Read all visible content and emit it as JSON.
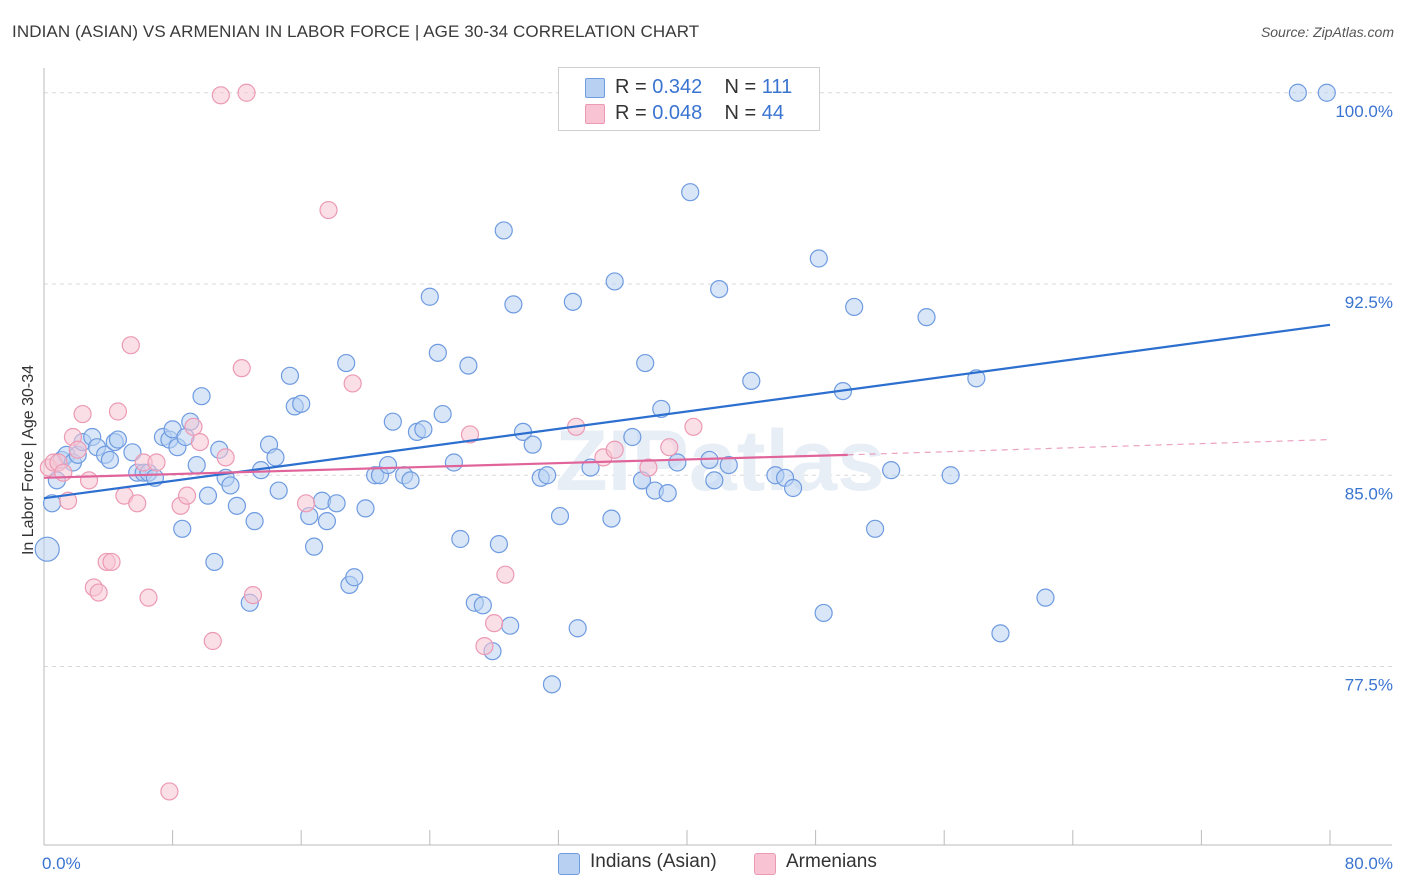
{
  "title": "INDIAN (ASIAN) VS ARMENIAN IN LABOR FORCE | AGE 30-34 CORRELATION CHART",
  "source": "Source: ZipAtlas.com",
  "watermark": "ZIPatlas",
  "legend": {
    "series1": {
      "r_label": "R = ",
      "r_value": "0.342",
      "n_label": "N = ",
      "n_value": "111"
    },
    "series2": {
      "r_label": "R = ",
      "r_value": "0.048",
      "n_label": "N = ",
      "n_value": "44"
    }
  },
  "bottom_legend": {
    "series1": "Indians (Asian)",
    "series2": "Armenians"
  },
  "colors": {
    "blue_fill": "#b8d1f3",
    "blue_stroke": "#6f9be0",
    "blue_line": "#2c6fcf",
    "pink_fill": "#f8c4d4",
    "pink_stroke": "#ec9ab4",
    "pink_line": "#e0649a",
    "axis_label": "#3a74d1",
    "grid": "#d8d8d8"
  },
  "chart_data": {
    "type": "scatter",
    "xlabel": "",
    "ylabel": "In Labor Force | Age 30-34",
    "xlim": [
      0,
      80
    ],
    "ylim": [
      70.5,
      100.5
    ],
    "x_tick_labels": {
      "min": "0.0%",
      "max": "80.0%"
    },
    "y_ticks": [
      {
        "value": 100,
        "label": "100.0%"
      },
      {
        "value": 92.5,
        "label": "92.5%"
      },
      {
        "value": 85,
        "label": "85.0%"
      },
      {
        "value": 77.5,
        "label": "77.5%"
      }
    ],
    "grid": true,
    "legend_position": "top-center",
    "series": [
      {
        "name": "Indians (Asian)",
        "color": "#6f9be0",
        "trend": {
          "x": [
            0,
            80
          ],
          "y": [
            84.1,
            90.9
          ],
          "dashed_after": null
        },
        "points": [
          [
            0.2,
            82.1
          ],
          [
            0.5,
            83.9
          ],
          [
            0.8,
            84.8
          ],
          [
            1.1,
            85.6
          ],
          [
            1.4,
            85.8
          ],
          [
            1.8,
            85.5
          ],
          [
            2.1,
            85.8
          ],
          [
            2.4,
            86.3
          ],
          [
            3.0,
            86.5
          ],
          [
            3.3,
            86.1
          ],
          [
            3.8,
            85.8
          ],
          [
            4.1,
            85.6
          ],
          [
            4.4,
            86.3
          ],
          [
            4.6,
            86.4
          ],
          [
            5.5,
            85.9
          ],
          [
            5.8,
            85.1
          ],
          [
            6.2,
            85.1
          ],
          [
            6.5,
            85.1
          ],
          [
            6.9,
            84.9
          ],
          [
            7.4,
            86.5
          ],
          [
            7.8,
            86.4
          ],
          [
            8.0,
            86.8
          ],
          [
            8.3,
            86.1
          ],
          [
            8.6,
            82.9
          ],
          [
            8.8,
            86.5
          ],
          [
            9.1,
            87.1
          ],
          [
            9.5,
            85.4
          ],
          [
            9.8,
            88.1
          ],
          [
            10.2,
            84.2
          ],
          [
            10.6,
            81.6
          ],
          [
            10.9,
            86.0
          ],
          [
            11.3,
            84.9
          ],
          [
            11.6,
            84.6
          ],
          [
            12.0,
            83.8
          ],
          [
            12.8,
            80.0
          ],
          [
            13.1,
            83.2
          ],
          [
            13.5,
            85.2
          ],
          [
            14.0,
            86.2
          ],
          [
            14.4,
            85.7
          ],
          [
            14.6,
            84.4
          ],
          [
            15.3,
            88.9
          ],
          [
            15.6,
            87.7
          ],
          [
            16.0,
            87.8
          ],
          [
            16.5,
            83.4
          ],
          [
            16.8,
            82.2
          ],
          [
            17.3,
            84.0
          ],
          [
            17.6,
            83.2
          ],
          [
            18.2,
            83.9
          ],
          [
            18.8,
            89.4
          ],
          [
            19.0,
            80.7
          ],
          [
            19.3,
            81.0
          ],
          [
            20.0,
            83.7
          ],
          [
            20.6,
            85.0
          ],
          [
            20.9,
            85.0
          ],
          [
            21.4,
            85.4
          ],
          [
            21.7,
            87.1
          ],
          [
            22.4,
            85.0
          ],
          [
            22.8,
            84.8
          ],
          [
            23.2,
            86.7
          ],
          [
            23.6,
            86.8
          ],
          [
            24.0,
            92.0
          ],
          [
            24.5,
            89.8
          ],
          [
            24.8,
            87.4
          ],
          [
            25.5,
            85.5
          ],
          [
            25.9,
            82.5
          ],
          [
            26.4,
            89.3
          ],
          [
            26.8,
            80.0
          ],
          [
            27.3,
            79.9
          ],
          [
            27.9,
            78.1
          ],
          [
            28.3,
            82.3
          ],
          [
            28.6,
            94.6
          ],
          [
            29.0,
            79.1
          ],
          [
            29.2,
            91.7
          ],
          [
            29.8,
            86.7
          ],
          [
            30.4,
            86.2
          ],
          [
            30.9,
            84.9
          ],
          [
            31.3,
            85.0
          ],
          [
            31.6,
            76.8
          ],
          [
            32.1,
            83.4
          ],
          [
            32.9,
            91.8
          ],
          [
            33.2,
            79.0
          ],
          [
            34.0,
            85.3
          ],
          [
            35.3,
            83.3
          ],
          [
            35.5,
            92.6
          ],
          [
            36.6,
            86.5
          ],
          [
            37.2,
            84.8
          ],
          [
            37.4,
            89.4
          ],
          [
            38.0,
            84.4
          ],
          [
            38.4,
            87.6
          ],
          [
            38.8,
            84.3
          ],
          [
            39.4,
            85.5
          ],
          [
            40.2,
            96.1
          ],
          [
            41.4,
            85.6
          ],
          [
            41.7,
            84.8
          ],
          [
            42.0,
            92.3
          ],
          [
            42.6,
            85.4
          ],
          [
            44.0,
            88.7
          ],
          [
            45.5,
            85.0
          ],
          [
            46.1,
            84.9
          ],
          [
            46.6,
            84.5
          ],
          [
            48.2,
            93.5
          ],
          [
            48.5,
            79.6
          ],
          [
            49.7,
            88.3
          ],
          [
            50.4,
            91.6
          ],
          [
            51.7,
            82.9
          ],
          [
            52.7,
            85.2
          ],
          [
            54.9,
            91.2
          ],
          [
            56.4,
            85.0
          ],
          [
            58.0,
            88.8
          ],
          [
            59.5,
            78.8
          ],
          [
            62.3,
            80.2
          ],
          [
            78.0,
            100.0
          ],
          [
            79.8,
            100.0
          ]
        ]
      },
      {
        "name": "Armenians",
        "color": "#ec9ab4",
        "trend": {
          "x": [
            0,
            50,
            80
          ],
          "y": [
            84.9,
            85.8,
            86.4
          ],
          "dashed_after": 50
        },
        "points": [
          [
            0.3,
            85.3
          ],
          [
            0.6,
            85.5
          ],
          [
            0.9,
            85.5
          ],
          [
            1.2,
            85.1
          ],
          [
            1.5,
            84.0
          ],
          [
            1.8,
            86.5
          ],
          [
            2.1,
            86.0
          ],
          [
            2.4,
            87.4
          ],
          [
            2.8,
            84.8
          ],
          [
            3.1,
            80.6
          ],
          [
            3.4,
            80.4
          ],
          [
            3.9,
            81.6
          ],
          [
            4.2,
            81.6
          ],
          [
            4.6,
            87.5
          ],
          [
            5.0,
            84.2
          ],
          [
            5.4,
            90.1
          ],
          [
            5.8,
            83.9
          ],
          [
            6.2,
            85.5
          ],
          [
            6.5,
            80.2
          ],
          [
            7.0,
            85.5
          ],
          [
            7.8,
            72.6
          ],
          [
            8.5,
            83.8
          ],
          [
            8.9,
            84.2
          ],
          [
            9.3,
            86.9
          ],
          [
            9.7,
            86.3
          ],
          [
            10.5,
            78.5
          ],
          [
            11.0,
            99.9
          ],
          [
            11.3,
            85.7
          ],
          [
            12.3,
            89.2
          ],
          [
            12.6,
            100.0
          ],
          [
            13.0,
            80.3
          ],
          [
            16.3,
            83.9
          ],
          [
            17.7,
            95.4
          ],
          [
            19.2,
            88.6
          ],
          [
            26.5,
            86.6
          ],
          [
            27.4,
            78.3
          ],
          [
            28.0,
            79.2
          ],
          [
            28.7,
            81.1
          ],
          [
            33.1,
            86.9
          ],
          [
            34.8,
            85.7
          ],
          [
            35.5,
            86.0
          ],
          [
            37.6,
            85.3
          ],
          [
            38.9,
            86.1
          ],
          [
            40.4,
            86.9
          ]
        ]
      }
    ]
  }
}
